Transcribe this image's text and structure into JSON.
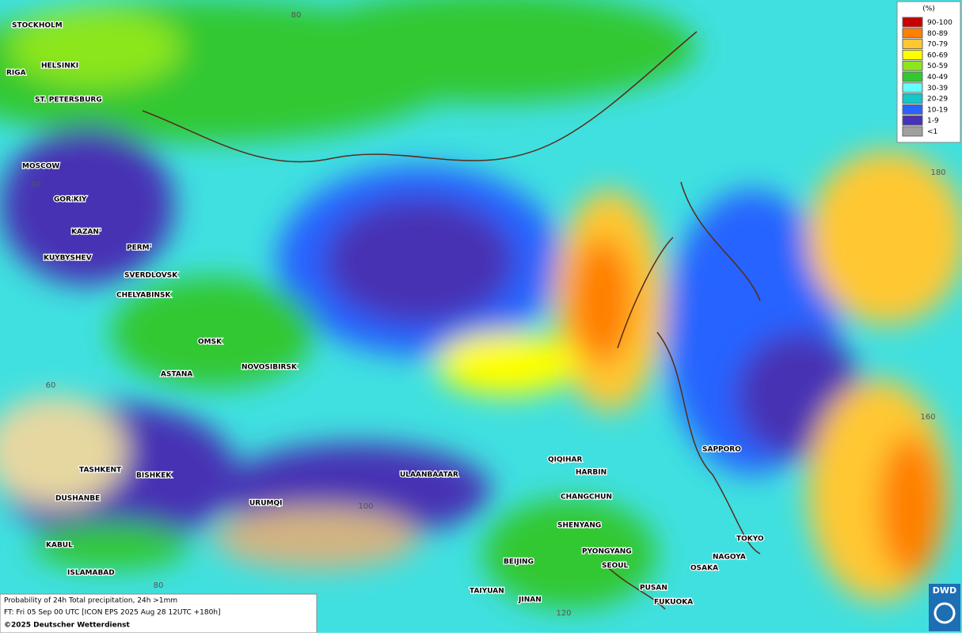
{
  "map": {
    "cities": [
      "STOCKHOLM",
      "HELSINKI",
      "RIGA",
      "ST. PETERSBURG",
      "MOSCOW",
      "GOR'KIY",
      "KAZAN'",
      "KUYBYSHEV",
      "PERM'",
      "SVERDLOVSK",
      "CHELYABINSK",
      "OMSK",
      "ASTANA",
      "NOVOSIBIRSK",
      "TASHKENT",
      "BISHKEK",
      "DUSHANBE",
      "URUMQI",
      "KABUL",
      "ISLAMABAD",
      "ULAANBAATAR",
      "QIQIHAR",
      "HARBIN",
      "CHANGCHUN",
      "SHENYANG",
      "PYONGYANG",
      "SEOUL",
      "BEIJING",
      "TAIYUAN",
      "JINAN",
      "PUSAN",
      "FUKUOKA",
      "SAPPORO",
      "TOKYO",
      "NAGOYA",
      "OSAKA"
    ],
    "grid_labels": [
      "80",
      "40",
      "60",
      "180",
      "160",
      "100",
      "80",
      "120"
    ]
  },
  "legend": {
    "title": "(%)",
    "items": [
      {
        "label": "90-100",
        "color": "#c80000"
      },
      {
        "label": "80-89",
        "color": "#ff7f00"
      },
      {
        "label": "70-79",
        "color": "#ffc832"
      },
      {
        "label": "60-69",
        "color": "#ffff00"
      },
      {
        "label": "50-59",
        "color": "#8ce61e"
      },
      {
        "label": "40-49",
        "color": "#32c832"
      },
      {
        "label": "30-39",
        "color": "#64ffff"
      },
      {
        "label": "20-29",
        "color": "#14c8c8"
      },
      {
        "label": "10-19",
        "color": "#2864ff"
      },
      {
        "label": "1-9",
        "color": "#4632b4"
      },
      {
        "label": "<1",
        "color": "#a0a0a0"
      }
    ]
  },
  "footer": {
    "line1": "Probability of 24h Total precipitation, 24h >1mm",
    "line2": "FT: Fri 05 Sep 00 UTC [ICON EPS 2025 Aug 28 12UTC +180h]",
    "line3": "©2025 Deutscher Wetterdienst"
  },
  "logo": {
    "text": "DWD"
  }
}
